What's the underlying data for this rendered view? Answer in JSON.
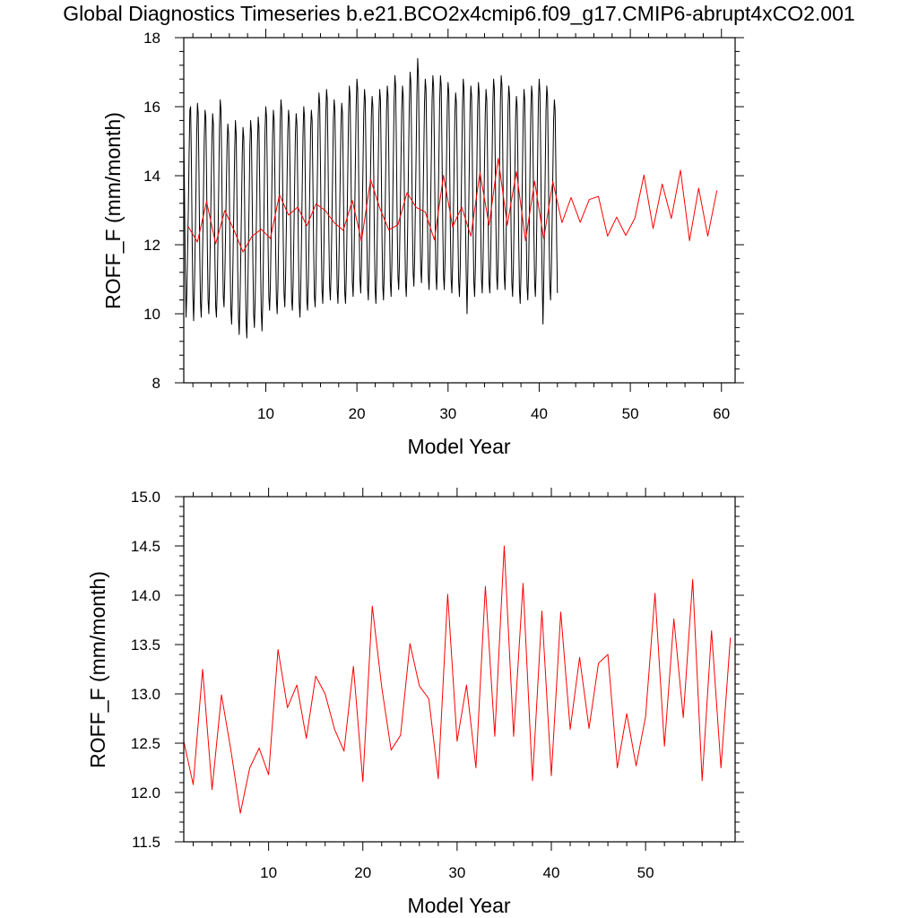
{
  "title": "Global Diagnostics Timeseries b.e21.BCO2x4cmip6.f09_g17.CMIP6-abrupt4xCO2.001",
  "colors": {
    "monthly": "#000000",
    "annual": "#ff0000"
  },
  "chart_data": [
    {
      "type": "line",
      "xlabel": "Model Year",
      "ylabel": "ROFF_F (mm/month)",
      "xlim": [
        1,
        61.5
      ],
      "ylim": [
        8,
        18
      ],
      "xticks": [
        10,
        20,
        30,
        40,
        50,
        60
      ],
      "yticks": [
        8,
        10,
        12,
        14,
        16,
        18
      ],
      "series": [
        {
          "name": "monthly",
          "color": "#000000",
          "x_start": 1.0,
          "x_step": 0.0833333,
          "values": [
            15.3,
            13.4,
            11.2,
            9.9,
            10.6,
            11.8,
            13.0,
            14.6,
            15.9,
            16.0,
            14.5,
            12.2,
            10.5,
            9.8,
            10.7,
            12.0,
            13.5,
            15.2,
            16.1,
            15.8,
            14.1,
            11.8,
            10.3,
            9.9,
            10.8,
            12.1,
            13.6,
            15.1,
            15.9,
            15.7,
            14.0,
            12.0,
            10.4,
            10.0,
            10.9,
            12.2,
            13.6,
            15.0,
            15.8,
            15.5,
            13.7,
            11.6,
            10.2,
            9.9,
            10.7,
            12.1,
            13.7,
            15.4,
            16.2,
            15.9,
            14.2,
            12.1,
            10.5,
            10.2,
            11.0,
            12.3,
            13.6,
            14.9,
            15.5,
            15.2,
            13.6,
            11.5,
            10.1,
            9.7,
            10.5,
            11.8,
            13.2,
            14.7,
            15.6,
            15.2,
            13.3,
            11.3,
            9.9,
            9.4,
            10.3,
            11.6,
            13.1,
            14.6,
            15.4,
            15.1,
            13.4,
            11.3,
            9.8,
            9.3,
            10.2,
            11.7,
            13.2,
            14.8,
            15.6,
            15.3,
            13.5,
            11.5,
            10.0,
            9.6,
            10.4,
            11.8,
            13.3,
            14.9,
            15.7,
            15.4,
            13.7,
            11.6,
            10.1,
            9.5,
            10.3,
            11.9,
            13.6,
            15.3,
            16.0,
            15.7,
            14.0,
            12.0,
            10.5,
            10.1,
            10.8,
            12.2,
            13.7,
            15.2,
            15.9,
            15.6,
            13.9,
            11.8,
            10.4,
            10.0,
            10.8,
            12.3,
            14.0,
            15.6,
            16.2,
            15.9,
            14.2,
            12.1,
            10.6,
            10.2,
            11.0,
            12.4,
            13.9,
            15.3,
            15.9,
            15.6,
            14.0,
            11.9,
            10.4,
            10.1,
            10.9,
            12.3,
            13.8,
            15.2,
            15.8,
            15.5,
            13.8,
            11.8,
            10.3,
            9.9,
            10.7,
            12.1,
            13.7,
            15.2,
            16.0,
            15.7,
            13.9,
            11.8,
            10.4,
            10.1,
            10.9,
            12.3,
            13.8,
            15.3,
            15.9,
            15.6,
            13.9,
            11.9,
            10.5,
            10.2,
            11.0,
            12.5,
            14.1,
            15.7,
            16.4,
            16.1,
            14.3,
            12.2,
            10.7,
            10.3,
            11.1,
            12.6,
            14.2,
            15.8,
            16.5,
            16.2,
            14.4,
            12.3,
            10.8,
            10.4,
            11.2,
            12.6,
            14.1,
            15.6,
            16.2,
            15.9,
            14.2,
            12.1,
            10.7,
            10.3,
            11.1,
            12.5,
            14.0,
            15.5,
            16.1,
            15.8,
            14.1,
            12.0,
            10.6,
            10.3,
            11.1,
            12.6,
            14.2,
            15.8,
            16.6,
            16.3,
            14.5,
            12.4,
            10.9,
            10.5,
            11.3,
            12.8,
            14.4,
            16.0,
            16.8,
            16.5,
            14.7,
            12.5,
            11.0,
            10.6,
            11.4,
            12.8,
            14.3,
            15.8,
            16.5,
            16.2,
            14.4,
            12.3,
            10.8,
            10.4,
            11.2,
            12.7,
            14.2,
            15.7,
            16.3,
            16.0,
            14.3,
            12.2,
            10.7,
            10.3,
            11.1,
            12.6,
            14.2,
            15.8,
            16.5,
            16.2,
            14.4,
            12.3,
            10.8,
            10.4,
            11.2,
            12.7,
            14.3,
            15.9,
            16.6,
            16.3,
            14.5,
            12.4,
            10.9,
            10.5,
            11.4,
            12.9,
            14.6,
            16.2,
            16.9,
            16.6,
            14.8,
            12.6,
            11.1,
            10.7,
            11.5,
            12.9,
            14.4,
            15.9,
            16.6,
            16.3,
            14.5,
            12.4,
            10.9,
            10.5,
            11.3,
            12.8,
            14.5,
            16.1,
            17.0,
            16.7,
            14.9,
            12.7,
            11.2,
            10.8,
            11.6,
            13.1,
            14.7,
            16.4,
            17.4,
            16.9,
            15.0,
            12.8,
            11.3,
            10.9,
            11.7,
            13.1,
            14.6,
            16.1,
            16.8,
            16.5,
            14.7,
            12.6,
            11.1,
            10.7,
            11.5,
            13.0,
            14.6,
            16.2,
            16.9,
            16.6,
            14.8,
            12.6,
            11.1,
            10.7,
            11.5,
            13.0,
            14.6,
            16.2,
            16.9,
            16.6,
            14.8,
            12.6,
            11.1,
            10.7,
            11.5,
            12.9,
            14.5,
            16.0,
            16.7,
            16.4,
            14.6,
            12.5,
            11.0,
            10.6,
            11.4,
            12.8,
            14.3,
            15.8,
            16.4,
            16.1,
            14.4,
            12.3,
            10.9,
            10.5,
            11.3,
            12.8,
            14.4,
            16.0,
            16.8,
            16.5,
            14.7,
            12.5,
            11.0,
            10.0,
            11.2,
            12.7,
            14.3,
            15.9,
            16.6,
            16.3,
            14.5,
            12.4,
            10.9,
            10.5,
            11.3,
            12.8,
            14.4,
            16.0,
            16.7,
            16.4,
            14.6,
            12.5,
            11.0,
            10.6,
            11.4,
            12.8,
            14.3,
            15.8,
            16.5,
            16.2,
            14.5,
            12.4,
            10.9,
            10.6,
            11.4,
            12.9,
            14.5,
            16.1,
            16.8,
            16.5,
            14.7,
            12.6,
            11.1,
            10.7,
            11.5,
            13.0,
            14.6,
            16.2,
            16.9,
            16.6,
            14.8,
            12.6,
            11.1,
            10.7,
            11.5,
            12.9,
            14.5,
            16.0,
            16.6,
            16.3,
            14.5,
            12.4,
            10.9,
            10.5,
            11.3,
            12.7,
            14.2,
            15.7,
            16.3,
            16.0,
            14.3,
            12.2,
            10.7,
            10.3,
            11.1,
            12.6,
            14.2,
            15.8,
            16.5,
            16.2,
            14.4,
            12.3,
            10.8,
            10.4,
            11.2,
            12.7,
            14.3,
            15.9,
            16.6,
            16.3,
            14.5,
            12.4,
            10.9,
            10.5,
            11.3,
            12.9,
            14.6,
            16.2,
            16.8,
            16.4,
            14.6,
            12.4,
            10.9,
            9.7,
            10.9,
            12.5,
            14.2,
            15.9,
            16.6,
            16.3,
            14.5,
            12.3,
            10.8,
            10.4,
            11.2,
            12.6,
            14.1,
            15.6,
            16.2,
            15.9,
            14.2,
            12.1,
            10.6
          ]
        },
        {
          "name": "annual",
          "color": "#ff0000",
          "x_start": 1.5,
          "x_step": 1,
          "values": [
            12.52,
            12.08,
            13.25,
            12.03,
            12.99,
            12.43,
            11.79,
            12.25,
            12.45,
            12.18,
            13.45,
            12.86,
            13.09,
            12.55,
            13.18,
            13.0,
            12.64,
            12.42,
            13.28,
            12.11,
            13.89,
            13.07,
            12.43,
            12.58,
            13.51,
            13.08,
            12.95,
            12.14,
            14.01,
            12.52,
            13.09,
            12.25,
            14.09,
            12.57,
            14.5,
            12.57,
            14.12,
            12.12,
            13.84,
            12.17,
            13.83,
            12.64,
            13.37,
            12.65,
            13.31,
            13.4,
            12.25,
            12.8,
            12.27,
            12.77,
            14.02,
            12.47,
            13.76,
            12.76,
            14.16,
            12.12,
            13.64,
            12.25,
            13.57
          ]
        }
      ]
    },
    {
      "type": "line",
      "xlabel": "Model Year",
      "ylabel": "ROFF_F (mm/month)",
      "xlim": [
        1,
        59.5
      ],
      "ylim": [
        11.5,
        15.0
      ],
      "xticks": [
        10,
        20,
        30,
        40,
        50
      ],
      "yticks": [
        11.5,
        12.0,
        12.5,
        13.0,
        13.5,
        14.0,
        14.5,
        15.0
      ],
      "ytick_labels": [
        "11.5",
        "12.0",
        "12.5",
        "13.0",
        "13.5",
        "14.0",
        "14.5",
        "15.0"
      ],
      "series": [
        {
          "name": "annual",
          "color": "#ff0000",
          "x_start": 1.0,
          "x_step": 1,
          "values": [
            12.52,
            12.08,
            13.25,
            12.03,
            12.99,
            12.43,
            11.79,
            12.25,
            12.45,
            12.18,
            13.45,
            12.86,
            13.09,
            12.55,
            13.18,
            13.0,
            12.64,
            12.42,
            13.28,
            12.11,
            13.89,
            13.07,
            12.43,
            12.58,
            13.51,
            13.08,
            12.95,
            12.14,
            14.01,
            12.52,
            13.09,
            12.25,
            14.09,
            12.57,
            14.5,
            12.57,
            14.12,
            12.12,
            13.84,
            12.17,
            13.83,
            12.64,
            13.37,
            12.65,
            13.31,
            13.4,
            12.25,
            12.8,
            12.27,
            12.77,
            14.02,
            12.47,
            13.76,
            12.76,
            14.16,
            12.12,
            13.64,
            12.25,
            13.57
          ]
        }
      ]
    }
  ]
}
